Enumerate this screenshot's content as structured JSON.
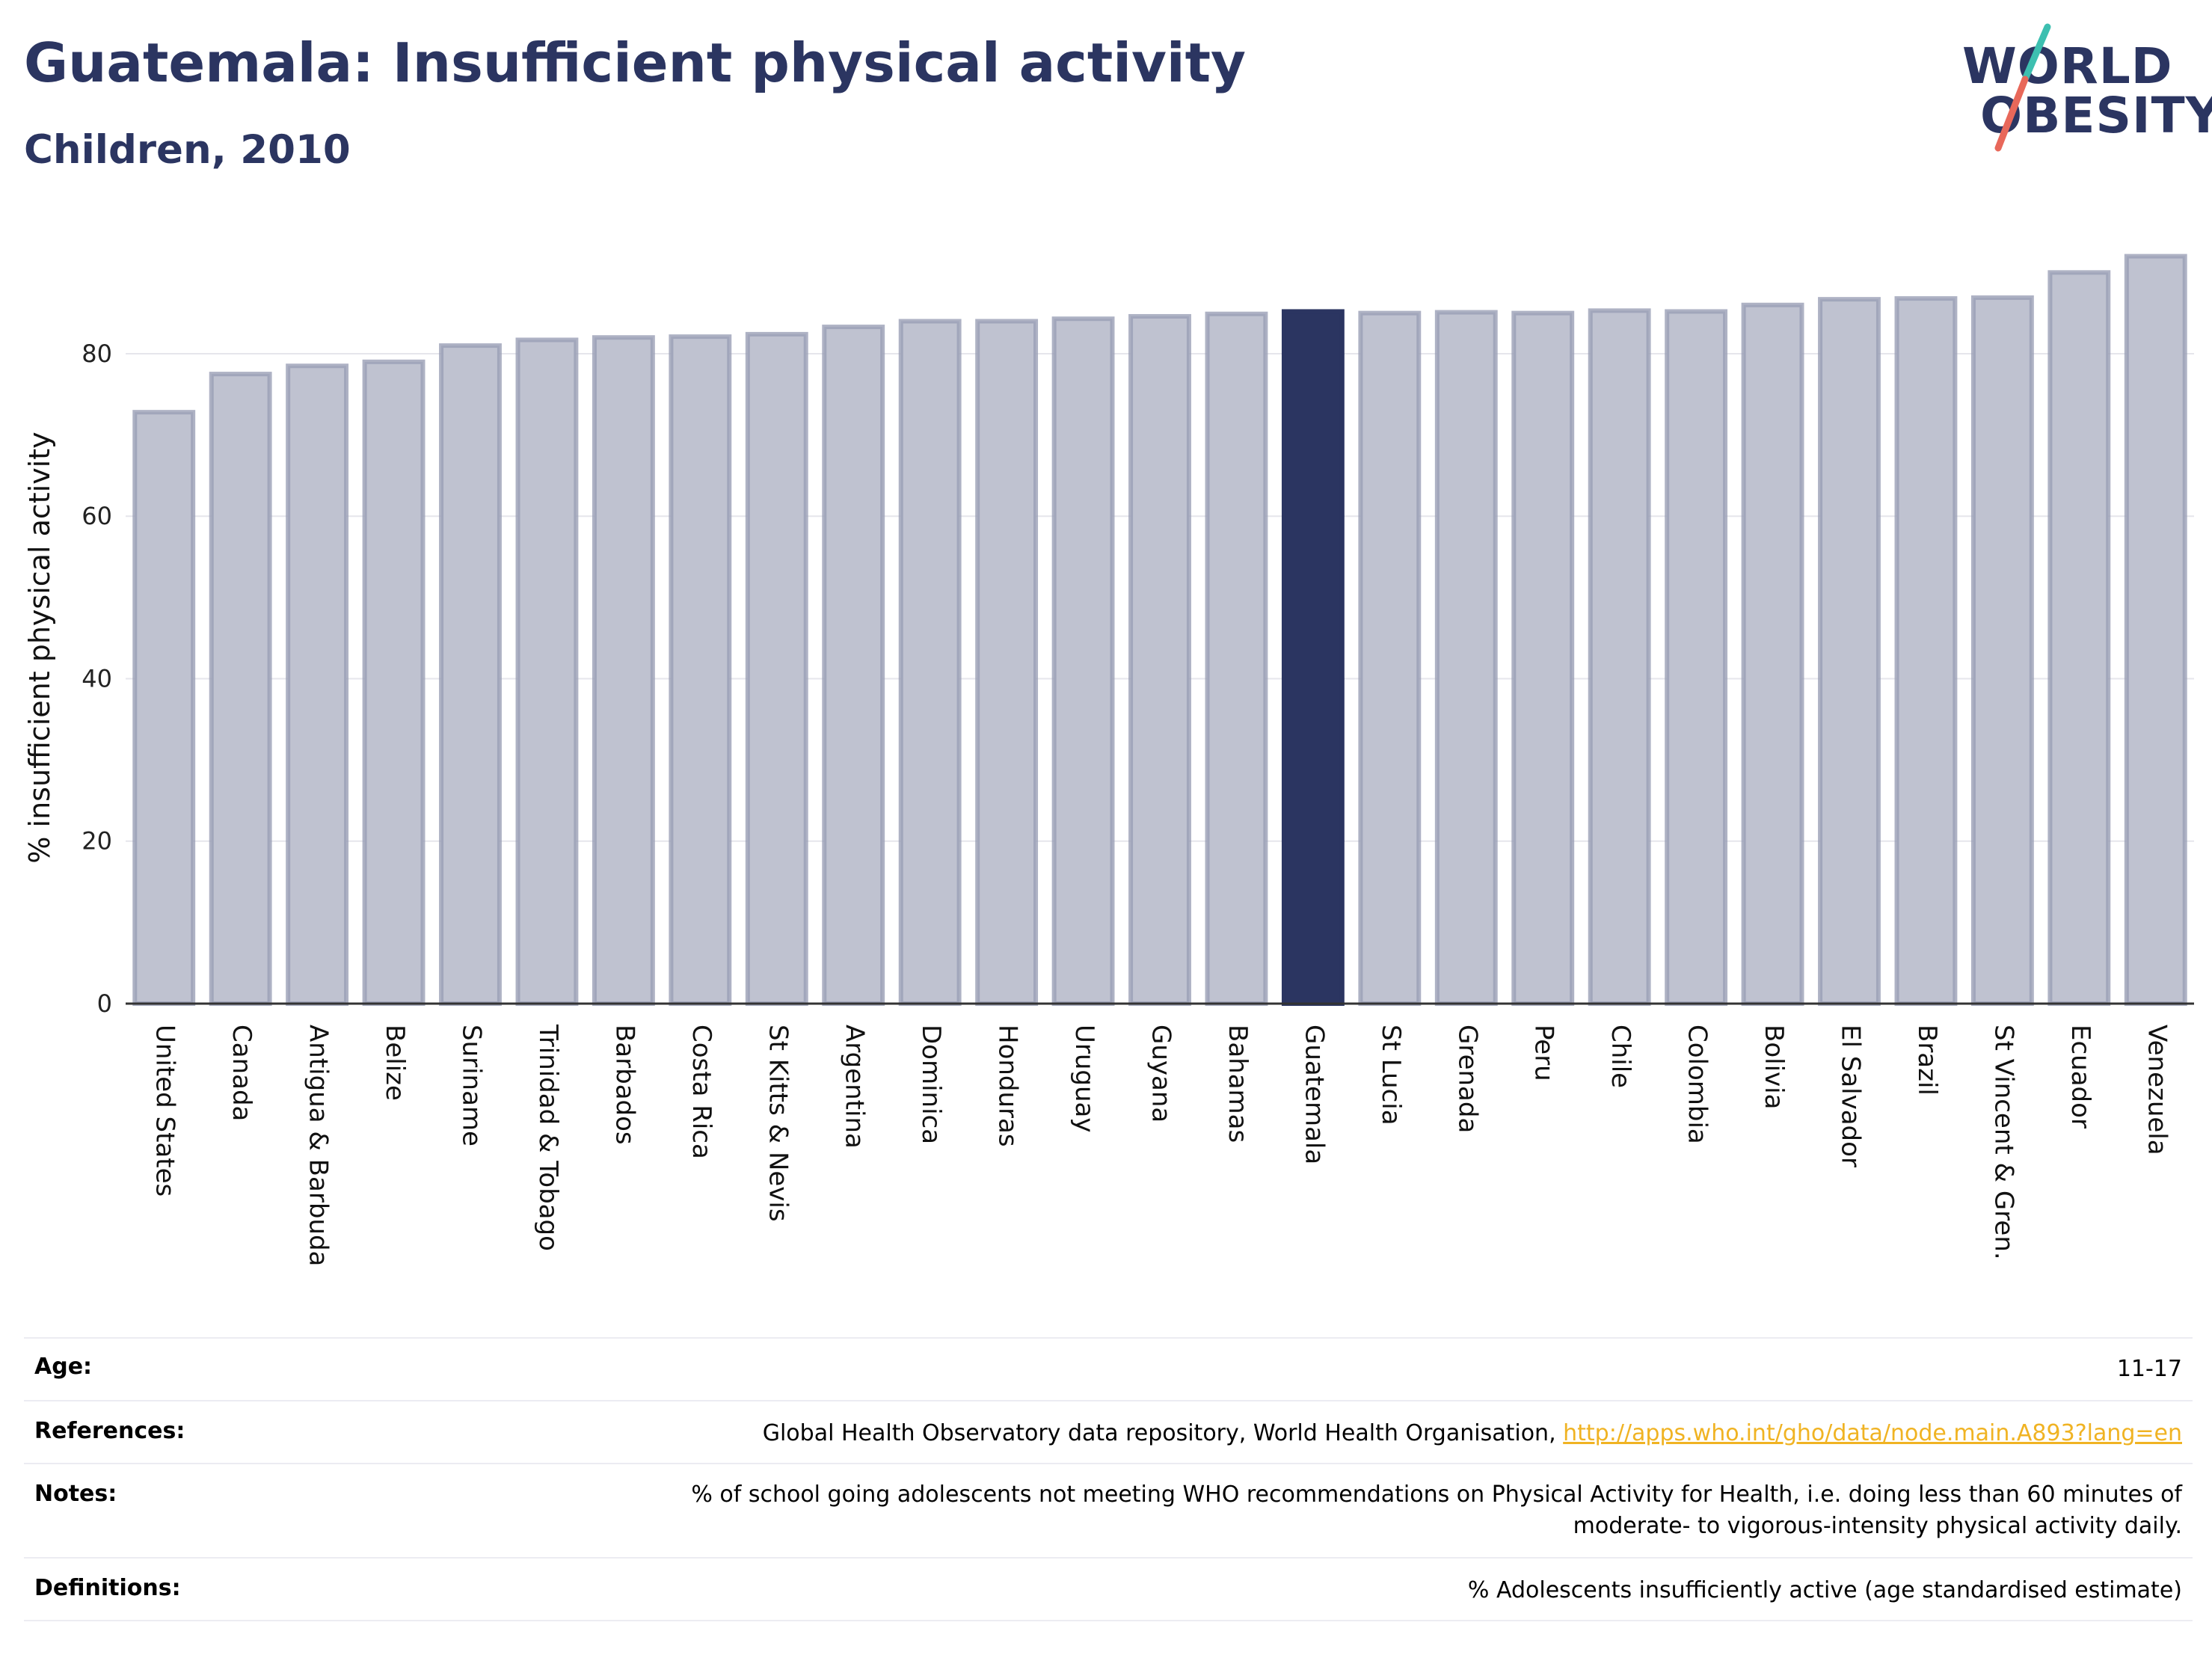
{
  "header": {
    "title": "Guatemala: Insufficient physical activity",
    "subtitle": "Children, 2010"
  },
  "logo": {
    "line1": "WORLD",
    "line2": "OBESITY",
    "colors": {
      "text": "#2b3561",
      "slash_top": "#3dbfb0",
      "slash_bottom": "#e8685a"
    }
  },
  "chart_data": {
    "type": "bar",
    "ylabel": "% insufficient physical activity",
    "ylim": [
      0,
      95
    ],
    "yticks": [
      0,
      20,
      40,
      60,
      80
    ],
    "grid": true,
    "highlight": "Guatemala",
    "colors": {
      "bar": "#bfc2d0",
      "bar_edge": "#9a9fb5",
      "highlight": "#2b3561"
    },
    "categories": [
      "United States",
      "Canada",
      "Antigua & Barbuda",
      "Belize",
      "Suriname",
      "Trinidad & Tobago",
      "Barbados",
      "Costa Rica",
      "St Kitts & Nevis",
      "Argentina",
      "Dominica",
      "Honduras",
      "Uruguay",
      "Guyana",
      "Bahamas",
      "Guatemala",
      "St Lucia",
      "Grenada",
      "Peru",
      "Chile",
      "Colombia",
      "Bolivia",
      "El Salvador",
      "Brazil",
      "St Vincent & Gren.",
      "Ecuador",
      "Venezuela"
    ],
    "values": [
      72.8,
      77.5,
      78.5,
      79.0,
      81.0,
      81.7,
      82.0,
      82.1,
      82.4,
      83.3,
      84.0,
      84.0,
      84.3,
      84.6,
      84.9,
      85.2,
      85.0,
      85.1,
      85.0,
      85.3,
      85.2,
      86.0,
      86.7,
      86.8,
      86.9,
      90.0,
      92.0
    ]
  },
  "info": {
    "age": {
      "label": "Age:",
      "value": "11-17"
    },
    "references": {
      "label": "References:",
      "text": "Global Health Observatory data repository, World Health Organisation, ",
      "link": "http://apps.who.int/gho/data/node.main.A893?lang=en"
    },
    "notes": {
      "label": "Notes:",
      "line1": "% of school going adolescents not meeting WHO recommendations on Physical Activity for Health, i.e. doing less than 60 minutes of",
      "line2": "moderate- to vigorous-intensity physical activity daily."
    },
    "definitions": {
      "label": "Definitions:",
      "value": "% Adolescents insufficiently active (age standardised estimate)"
    }
  }
}
